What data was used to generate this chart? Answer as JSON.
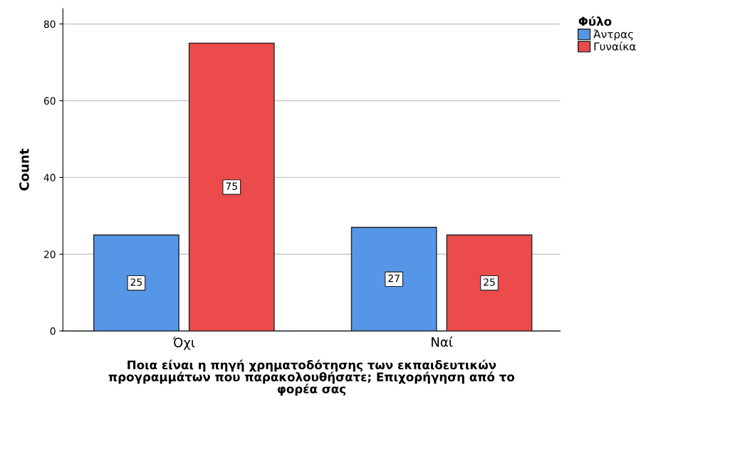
{
  "chart_data": {
    "type": "bar",
    "xlabel": "Ποια είναι η πηγή χρηματοδότησης των εκπαιδευτικών\nπρογραμμάτων που παρακολουθήσατε; Επιχορήγηση από το\nφορέα σας",
    "ylabel": "Count",
    "legend_title": "Φύλο",
    "categories": [
      "Όχι",
      "Ναί"
    ],
    "series": [
      {
        "name": "Άντρας",
        "color": "#5596e6",
        "values": [
          25,
          27
        ]
      },
      {
        "name": "Γυναίκα",
        "color": "#eb4b4b",
        "values": [
          75,
          25
        ]
      }
    ],
    "ylim": [
      0,
      84
    ],
    "yticks": [
      0,
      20,
      40,
      60,
      80
    ],
    "grid": "y",
    "legend": "top right",
    "data_labels": true
  }
}
